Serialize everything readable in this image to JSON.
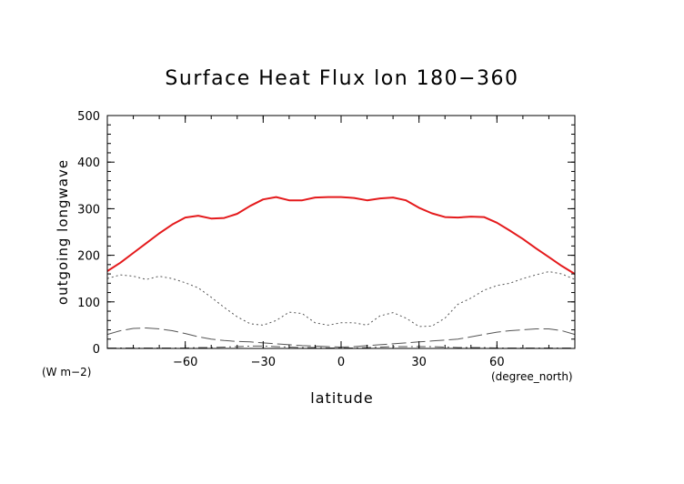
{
  "chart_data": {
    "type": "line",
    "title": "Surface Heat Flux lon 180−360",
    "xlabel": "latitude",
    "ylabel": "outgoing longwave",
    "x_units": "(degree_north)",
    "y_units": "(W m−2)",
    "xlim": [
      -90,
      90
    ],
    "ylim": [
      0,
      500
    ],
    "xticks": [
      -60,
      -30,
      0,
      30,
      60
    ],
    "xtick_labels": [
      "−60",
      "−30",
      "0",
      "30",
      "60"
    ],
    "yticks": [
      0,
      100,
      200,
      300,
      400,
      500
    ],
    "ytick_labels": [
      "0",
      "100",
      "200",
      "300",
      "400",
      "500"
    ],
    "grid": false,
    "x": [
      -90,
      -85,
      -80,
      -75,
      -70,
      -65,
      -60,
      -55,
      -50,
      -45,
      -40,
      -35,
      -30,
      -25,
      -20,
      -15,
      -10,
      -5,
      0,
      5,
      10,
      15,
      20,
      25,
      30,
      35,
      40,
      45,
      50,
      55,
      60,
      65,
      70,
      75,
      80,
      85,
      90
    ],
    "series": [
      {
        "color": "#e41a1c",
        "dash": "solid",
        "values": [
          166,
          184,
          205,
          226,
          247,
          266,
          281,
          285,
          279,
          280,
          289,
          306,
          320,
          325,
          318,
          318,
          324,
          325,
          325,
          323,
          318,
          322,
          324,
          318,
          302,
          290,
          282,
          281,
          283,
          282,
          270,
          253,
          235,
          215,
          196,
          177,
          160
        ]
      },
      {
        "color": "#555555",
        "dash": "dot",
        "values": [
          150,
          158,
          155,
          148,
          155,
          150,
          141,
          130,
          110,
          88,
          68,
          53,
          50,
          60,
          78,
          75,
          55,
          50,
          55,
          55,
          50,
          70,
          77,
          65,
          47,
          48,
          65,
          95,
          108,
          125,
          135,
          140,
          150,
          158,
          165,
          160,
          148
        ]
      },
      {
        "color": "#555555",
        "dash": "longdash",
        "values": [
          30,
          38,
          43,
          44,
          42,
          38,
          32,
          25,
          20,
          17,
          15,
          14,
          12,
          10,
          8,
          6,
          5,
          4,
          3,
          4,
          6,
          8,
          10,
          12,
          14,
          16,
          18,
          20,
          25,
          30,
          35,
          38,
          40,
          42,
          42,
          38,
          30
        ]
      },
      {
        "color": "#555555",
        "dash": "dashdot",
        "values": [
          1,
          1,
          1,
          1,
          1,
          1,
          1,
          2,
          2,
          3,
          4,
          5,
          5,
          4,
          3,
          2,
          2,
          1,
          1,
          1,
          2,
          3,
          4,
          4,
          4,
          4,
          3,
          2,
          2,
          2,
          1,
          1,
          1,
          1,
          1,
          1,
          1
        ]
      }
    ]
  }
}
